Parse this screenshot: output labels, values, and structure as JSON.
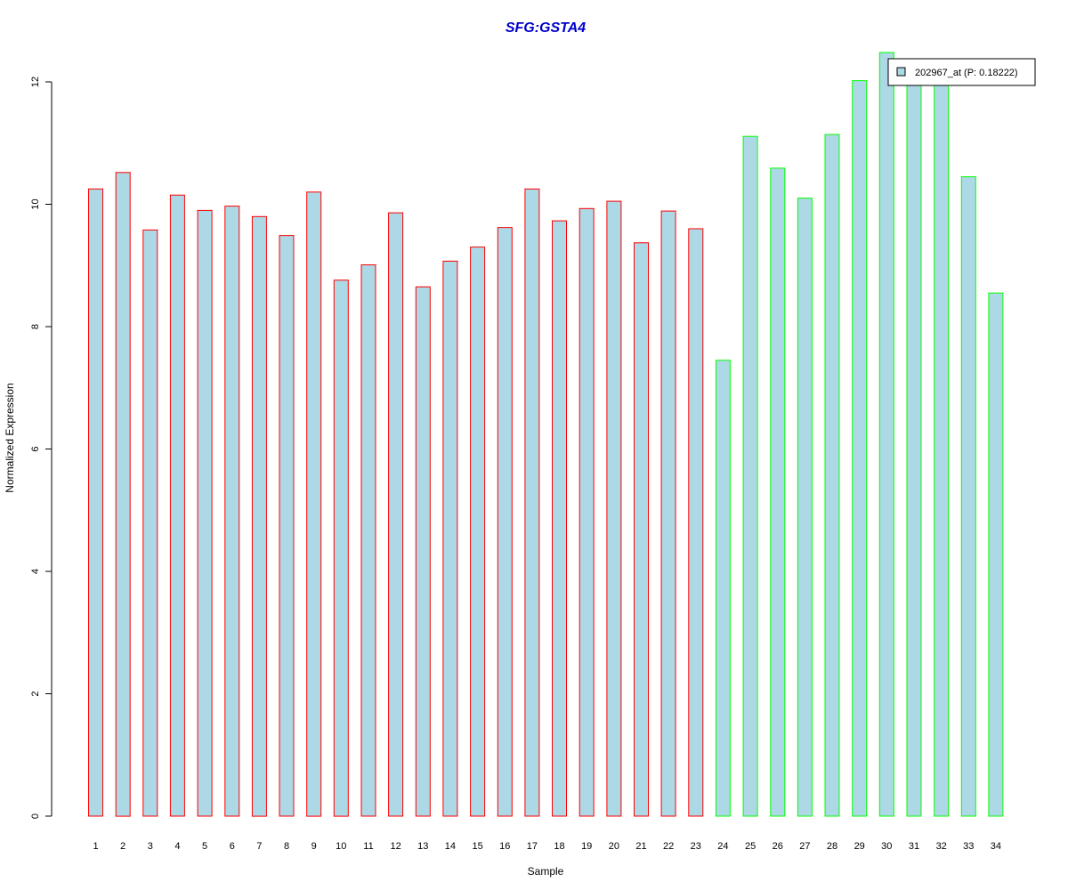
{
  "chart_data": {
    "type": "bar",
    "title": "SFG:GSTA4",
    "xlabel": "Sample",
    "ylabel": "Normalized Expression",
    "ylim": [
      0,
      12.5
    ],
    "yticks": [
      0,
      2,
      4,
      6,
      8,
      10,
      12
    ],
    "grid": false,
    "legend": {
      "label": "202967_at (P: 0.18222)",
      "position": "top-right"
    },
    "categories": [
      "1",
      "2",
      "3",
      "4",
      "5",
      "6",
      "7",
      "8",
      "9",
      "10",
      "11",
      "12",
      "13",
      "14",
      "15",
      "16",
      "17",
      "18",
      "19",
      "20",
      "21",
      "22",
      "23",
      "24",
      "25",
      "26",
      "27",
      "28",
      "29",
      "30",
      "31",
      "32",
      "33",
      "34"
    ],
    "values": [
      10.25,
      10.52,
      9.58,
      10.15,
      9.9,
      9.97,
      9.8,
      9.49,
      10.2,
      8.76,
      9.01,
      9.86,
      8.65,
      9.07,
      9.3,
      9.62,
      10.25,
      9.73,
      9.93,
      10.05,
      9.37,
      9.89,
      9.6,
      7.45,
      11.11,
      10.59,
      10.1,
      11.14,
      12.02,
      12.48,
      12.08,
      12.14,
      10.45,
      8.55
    ],
    "groups": [
      "red",
      "red",
      "red",
      "red",
      "red",
      "red",
      "red",
      "red",
      "red",
      "red",
      "red",
      "red",
      "red",
      "red",
      "red",
      "red",
      "red",
      "red",
      "red",
      "red",
      "red",
      "red",
      "red",
      "green",
      "green",
      "green",
      "green",
      "green",
      "green",
      "green",
      "green",
      "green",
      "green",
      "green"
    ],
    "colors": {
      "bar_fill": "#add8e6",
      "group_red": "#ff0000",
      "group_green": "#00ff00",
      "title": "#0000cc",
      "axis": "#000000"
    }
  }
}
